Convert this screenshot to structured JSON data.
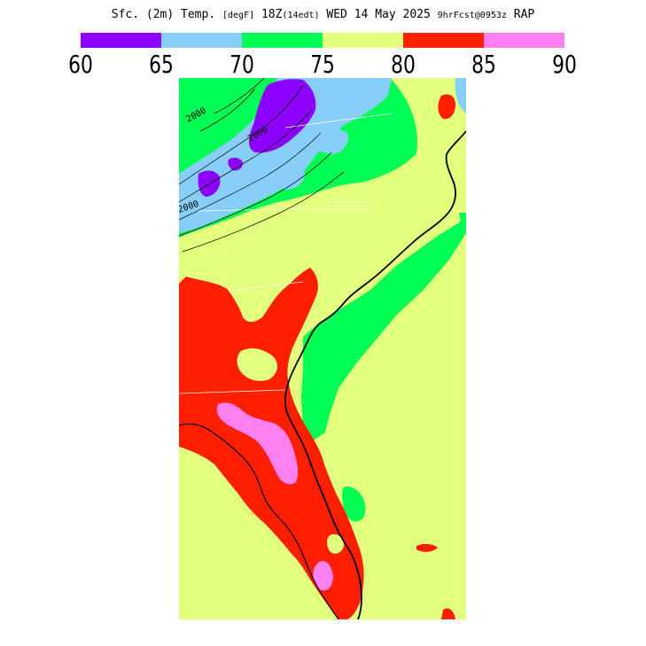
{
  "title": {
    "field": "Sfc. (2m) Temp.",
    "unit": "[degF]",
    "valid": "18Z",
    "init": "(14edt)",
    "date": "WED 14 May 2025",
    "forecast": "9hrFcst@0953z",
    "model": "RAP"
  },
  "colorbar": {
    "ticks": [
      "60",
      "65",
      "70",
      "75",
      "80",
      "85",
      "90"
    ],
    "colors": [
      "#8c00ff",
      "#87cefa",
      "#00ff55",
      "#e2ff7e",
      "#ff1e00",
      "#ff80f0"
    ]
  },
  "map": {
    "land_color": "#e2ff7e",
    "contour_labels": [
      "2000",
      "2000",
      "2000"
    ]
  }
}
